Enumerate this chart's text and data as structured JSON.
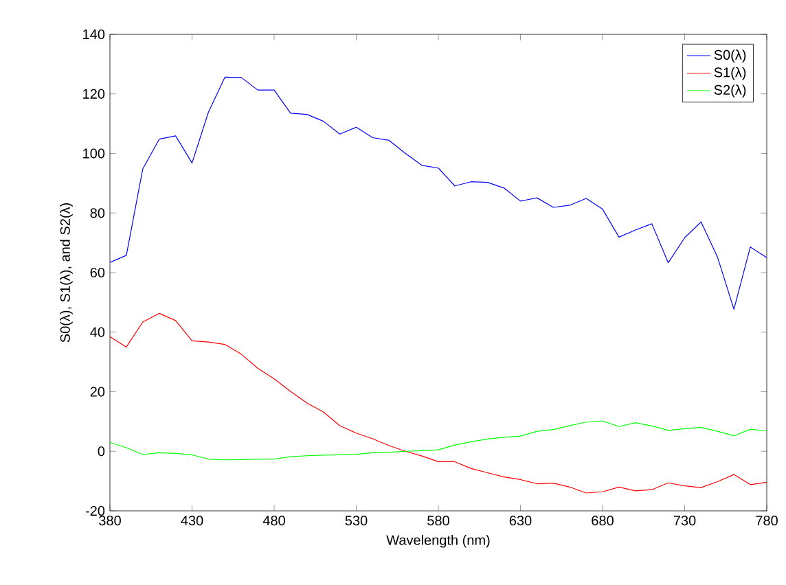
{
  "chart_data": {
    "type": "line",
    "xlabel": "Wavelength (nm)",
    "ylabel": "S0(λ), S1(λ), and S2(λ)",
    "x": [
      380,
      390,
      400,
      410,
      420,
      430,
      440,
      450,
      460,
      470,
      480,
      490,
      500,
      510,
      520,
      530,
      540,
      550,
      560,
      570,
      580,
      590,
      600,
      610,
      620,
      630,
      640,
      650,
      660,
      670,
      680,
      690,
      700,
      710,
      720,
      730,
      740,
      750,
      760,
      770,
      780
    ],
    "series": [
      {
        "name": "S0(λ)",
        "color": "#0000ff",
        "values": [
          63.4,
          65.8,
          94.8,
          104.8,
          105.9,
          96.8,
          113.9,
          125.6,
          125.5,
          121.3,
          121.3,
          113.5,
          113.1,
          110.8,
          106.5,
          108.8,
          105.3,
          104.4,
          100.0,
          96.0,
          95.1,
          89.1,
          90.5,
          90.3,
          88.4,
          84.0,
          85.1,
          81.9,
          82.6,
          84.9,
          81.3,
          71.9,
          74.3,
          76.4,
          63.3,
          71.7,
          77.0,
          65.2,
          47.7,
          68.6,
          65.0
        ]
      },
      {
        "name": "S1(λ)",
        "color": "#ff0000",
        "values": [
          38.5,
          35.0,
          43.4,
          46.3,
          43.9,
          37.1,
          36.7,
          35.9,
          32.6,
          27.9,
          24.3,
          20.1,
          16.2,
          13.2,
          8.6,
          6.1,
          4.2,
          1.9,
          0,
          -1.6,
          -3.5,
          -3.5,
          -5.8,
          -7.2,
          -8.6,
          -9.5,
          -10.9,
          -10.7,
          -12.0,
          -14.0,
          -13.6,
          -12.0,
          -13.3,
          -12.9,
          -10.6,
          -11.6,
          -12.2,
          -10.2,
          -7.8,
          -11.2,
          -10.4
        ]
      },
      {
        "name": "S2(λ)",
        "color": "#00ff00",
        "values": [
          3.0,
          1.2,
          -1.1,
          -0.5,
          -0.7,
          -1.2,
          -2.6,
          -2.9,
          -2.8,
          -2.6,
          -2.6,
          -1.8,
          -1.5,
          -1.3,
          -1.2,
          -1.0,
          -0.5,
          -0.3,
          0,
          0.2,
          0.5,
          2.1,
          3.2,
          4.1,
          4.7,
          5.1,
          6.7,
          7.3,
          8.6,
          9.8,
          10.2,
          8.3,
          9.6,
          8.5,
          7.0,
          7.6,
          8.0,
          6.7,
          5.2,
          7.4,
          6.8
        ]
      }
    ],
    "xlim": [
      380,
      780
    ],
    "ylim": [
      -20,
      140
    ],
    "xticks": [
      380,
      430,
      480,
      530,
      580,
      630,
      680,
      730,
      780
    ],
    "yticks": [
      -20,
      0,
      20,
      40,
      60,
      80,
      100,
      120,
      140
    ],
    "legend": "top right",
    "grid": false
  }
}
